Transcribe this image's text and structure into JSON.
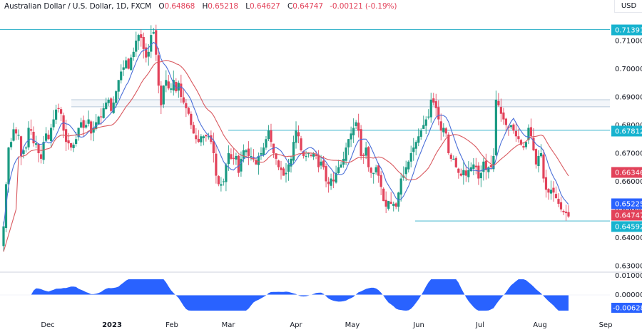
{
  "header": {
    "symbol_title": "Australian Dollar / U.S. Dollar, 1D, FXCM",
    "open_label": "O",
    "open_value": "0.64868",
    "high_label": "H",
    "high_value": "0.65218",
    "low_label": "L",
    "low_value": "0.64627",
    "close_label": "C",
    "close_value": "0.64747",
    "change": "-0.00121 (-0.19%)",
    "currency": "USD"
  },
  "colors": {
    "up": "#1a9a82",
    "down": "#e2425a",
    "ma_fast": "#4a6fd8",
    "ma_slow": "#d9595f",
    "level_line": "#3bb5cc",
    "band_line": "#b8c9da",
    "osc_fill": "#2962ff",
    "tag_teal": "#17b3cf",
    "tag_red": "#e2425a",
    "tag_blue": "#2962ff"
  },
  "price_axis": {
    "ticks": [
      "0.71000",
      "0.70000",
      "0.69000",
      "0.68000",
      "0.67000",
      "0.66000",
      "0.65000",
      "0.64000",
      "0.63000"
    ],
    "tags": [
      {
        "label": "0.71391",
        "kind": "teal"
      },
      {
        "label": "0.67812",
        "kind": "teal"
      },
      {
        "label": "0.66346",
        "kind": "red"
      },
      {
        "label": "0.65225",
        "kind": "blue"
      },
      {
        "label": "0.64747",
        "kind": "red"
      },
      {
        "label": "0.64592",
        "kind": "teal"
      }
    ]
  },
  "osc_axis": {
    "ticks": [
      "0.01000",
      "0.00000"
    ],
    "tag": "-0.00628"
  },
  "time_axis": {
    "labels": [
      "Dec",
      "2023",
      "Feb",
      "Mar",
      "Apr",
      "May",
      "Jun",
      "Jul",
      "Aug",
      "Sep"
    ]
  },
  "chart_data": [
    {
      "type": "candlestick",
      "title": "Australian Dollar / U.S. Dollar, 1D, FXCM",
      "xlabel": "",
      "ylabel": "USD",
      "ylim": [
        0.625,
        0.717
      ],
      "x_range": [
        "2022-11-14",
        "2023-09-05"
      ],
      "last_bar": {
        "open": 0.64868,
        "high": 0.65218,
        "low": 0.64627,
        "close": 0.64747,
        "change": -0.00121,
        "change_pct": -0.19
      },
      "horizontal_levels": [
        0.71391,
        0.67812,
        0.64592
      ],
      "range_band": [
        0.6865,
        0.689
      ],
      "moving_averages": [
        {
          "name": "MA fast (blue)",
          "last": 0.65225
        },
        {
          "name": "MA slow (red)",
          "last": 0.66346
        }
      ],
      "closes_approx": [
        0.644,
        0.659,
        0.672,
        0.674,
        0.6785,
        0.677,
        0.6765,
        0.669,
        0.671,
        0.672,
        0.679,
        0.678,
        0.6735,
        0.6735,
        0.67,
        0.668,
        0.674,
        0.677,
        0.675,
        0.679,
        0.682,
        0.6855,
        0.686,
        0.684,
        0.678,
        0.674,
        0.6735,
        0.672,
        0.673,
        0.675,
        0.679,
        0.681,
        0.679,
        0.68,
        0.682,
        0.677,
        0.679,
        0.681,
        0.683,
        0.683,
        0.686,
        0.688,
        0.689,
        0.685,
        0.688,
        0.692,
        0.696,
        0.699,
        0.7005,
        0.703,
        0.7,
        0.704,
        0.706,
        0.71,
        0.712,
        0.711,
        0.707,
        0.704,
        0.706,
        0.712,
        0.713,
        0.705,
        0.694,
        0.687,
        0.694,
        0.696,
        0.693,
        0.693,
        0.696,
        0.692,
        0.695,
        0.69,
        0.688,
        0.686,
        0.684,
        0.68,
        0.677,
        0.675,
        0.674,
        0.676,
        0.676,
        0.676,
        0.676,
        0.674,
        0.67,
        0.662,
        0.659,
        0.659,
        0.66,
        0.666,
        0.67,
        0.668,
        0.668,
        0.669,
        0.663,
        0.668,
        0.671,
        0.671,
        0.669,
        0.669,
        0.668,
        0.666,
        0.669,
        0.67,
        0.672,
        0.675,
        0.678,
        0.674,
        0.67,
        0.668,
        0.665,
        0.664,
        0.662,
        0.663,
        0.666,
        0.668,
        0.674,
        0.678,
        0.676,
        0.671,
        0.669,
        0.669,
        0.67,
        0.669,
        0.67,
        0.669,
        0.665,
        0.667,
        0.665,
        0.66,
        0.659,
        0.661,
        0.66,
        0.663,
        0.665,
        0.666,
        0.668,
        0.672,
        0.675,
        0.677,
        0.679,
        0.681,
        0.678,
        0.669,
        0.669,
        0.672,
        0.665,
        0.663,
        0.663,
        0.665,
        0.662,
        0.658,
        0.653,
        0.651,
        0.653,
        0.652,
        0.652,
        0.651,
        0.656,
        0.661,
        0.662,
        0.665,
        0.667,
        0.67,
        0.672,
        0.674,
        0.676,
        0.678,
        0.68,
        0.682,
        0.683,
        0.689,
        0.688,
        0.686,
        0.682,
        0.678,
        0.679,
        0.677,
        0.67,
        0.668,
        0.668,
        0.665,
        0.663,
        0.662,
        0.664,
        0.662,
        0.664,
        0.665,
        0.666,
        0.665,
        0.661,
        0.663,
        0.667,
        0.664,
        0.665,
        0.665,
        0.669,
        0.689,
        0.687,
        0.684,
        0.682,
        0.68,
        0.679,
        0.68,
        0.678,
        0.676,
        0.675,
        0.673,
        0.672,
        0.674,
        0.679,
        0.676,
        0.671,
        0.666,
        0.669,
        0.67,
        0.661,
        0.657,
        0.656,
        0.657,
        0.656,
        0.654,
        0.652,
        0.65,
        0.649,
        0.6487,
        0.6475
      ],
      "oscillator": {
        "name": "Oscillator (histogram/area)",
        "ylim": [
          -0.012,
          0.012
        ],
        "ticks": [
          0.01,
          0.0
        ],
        "last": -0.00628
      }
    }
  ]
}
